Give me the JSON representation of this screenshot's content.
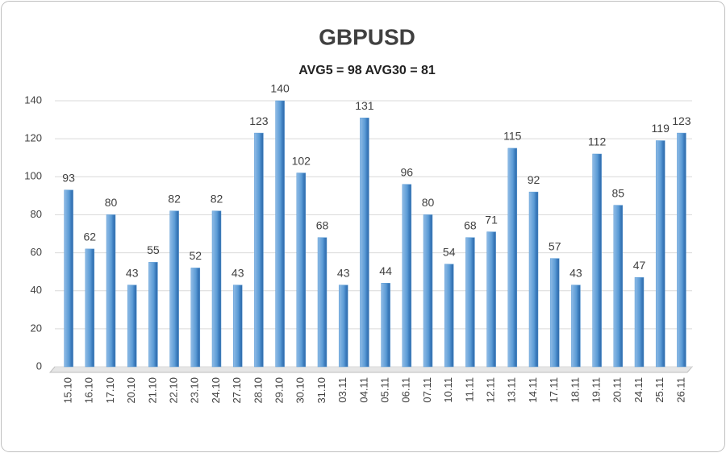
{
  "chart_data": {
    "type": "bar",
    "title": "GBPUSD",
    "subtitle": "AVG5 = 98 AVG30 = 81",
    "categories": [
      "15.10",
      "16.10",
      "17.10",
      "20.10",
      "21.10",
      "22.10",
      "23.10",
      "24.10",
      "27.10",
      "28.10",
      "29.10",
      "30.10",
      "31.10",
      "03.11",
      "04.11",
      "05.11",
      "06.11",
      "07.11",
      "10.11",
      "11.11",
      "12.11",
      "13.11",
      "14.11",
      "17.11",
      "18.11",
      "19.11",
      "20.11",
      "24.11",
      "25.11",
      "26.11"
    ],
    "values": [
      93,
      62,
      80,
      43,
      55,
      82,
      52,
      82,
      43,
      123,
      140,
      102,
      68,
      43,
      131,
      44,
      96,
      80,
      54,
      68,
      71,
      115,
      92,
      57,
      43,
      112,
      85,
      47,
      119,
      123
    ],
    "color": "#5b9bd5",
    "ylim": [
      0,
      140
    ],
    "yticks": [
      0,
      20,
      40,
      60,
      80,
      100,
      120,
      140
    ],
    "grid": true
  }
}
